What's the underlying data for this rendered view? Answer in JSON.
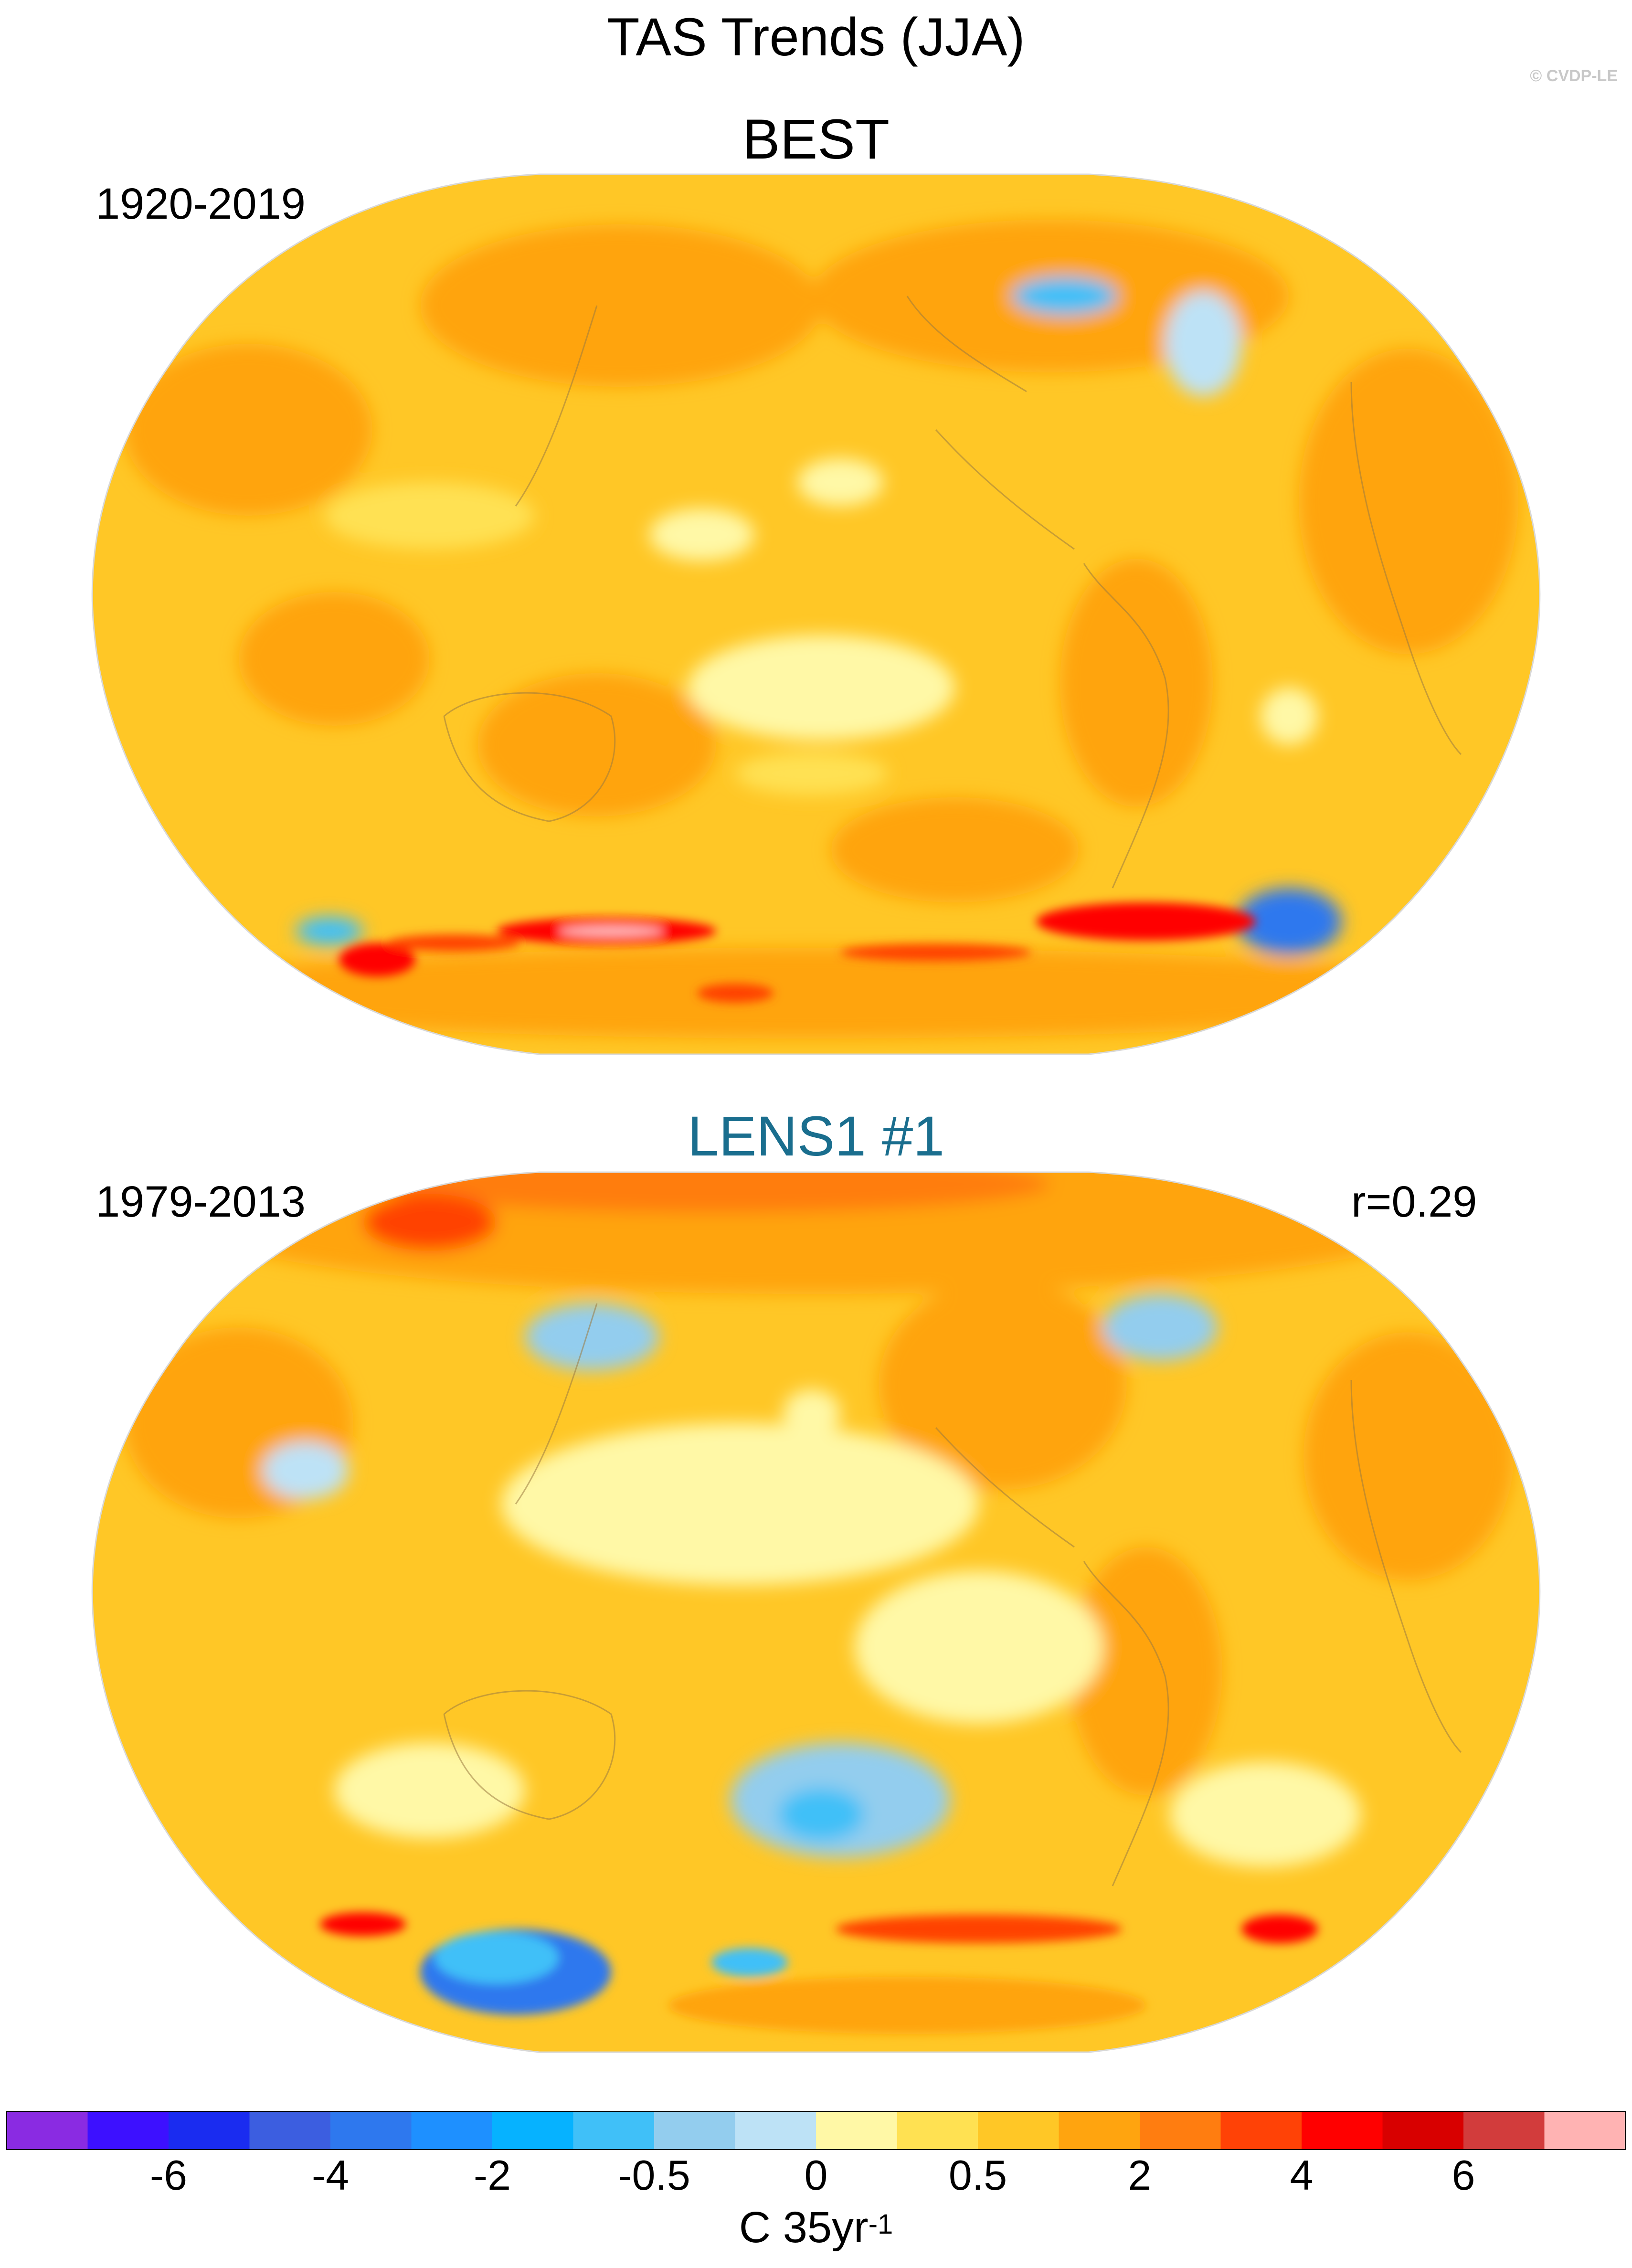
{
  "title": "TAS Trends (JJA)",
  "credit": "© CVDP-LE",
  "panels": [
    {
      "name": "BEST",
      "period": "1920-2019",
      "corr": ""
    },
    {
      "name": "LENS1 #1",
      "period": "1979-2013",
      "corr": "r=0.29"
    }
  ],
  "colorbar": {
    "labels": [
      "-6",
      "-4",
      "-2",
      "-0.5",
      "0",
      "0.5",
      "2",
      "4",
      "6"
    ],
    "unit": "C 35yr",
    "unit_exponent": "-1",
    "colors": [
      "#8a2be2",
      "#3d10ff",
      "#1a2cf0",
      "#3c5ee0",
      "#2e78ee",
      "#1e90ff",
      "#06b2ff",
      "#40c0f8",
      "#93cdee",
      "#bde2f6",
      "#fff8a6",
      "#ffe152",
      "#ffc726",
      "#ffa40f",
      "#ff7d10",
      "#ff4206",
      "#ff0000",
      "#d80000",
      "#d23c3c",
      "#ffb3b3"
    ]
  }
}
